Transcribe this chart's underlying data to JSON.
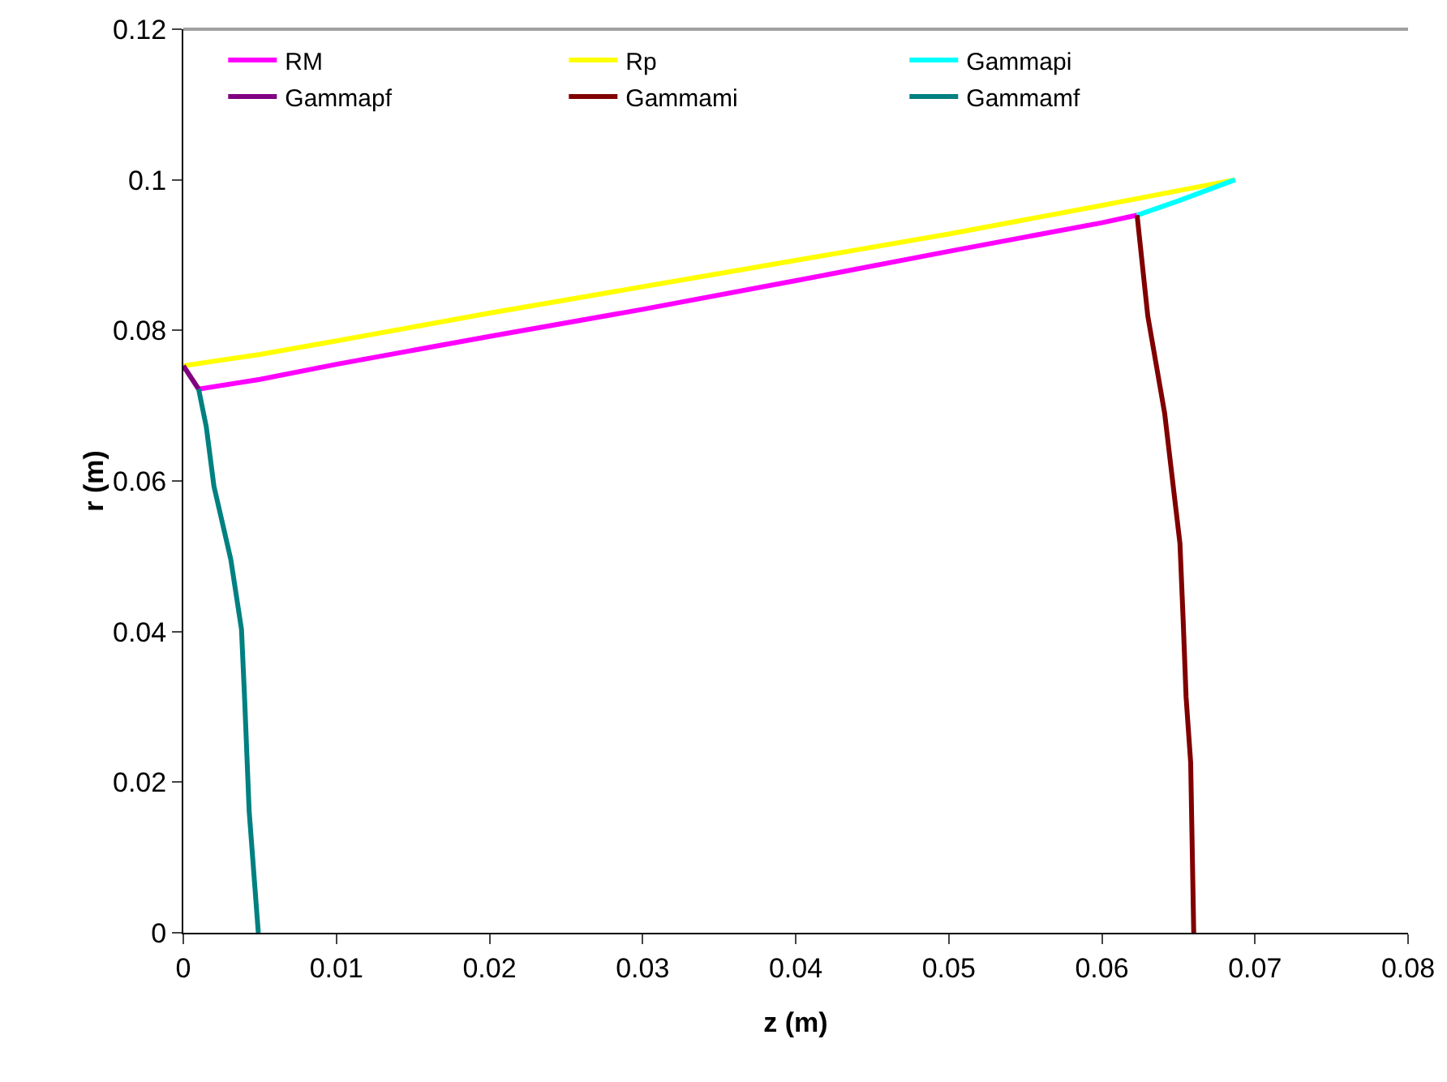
{
  "chart_data": {
    "type": "line",
    "xlabel": "z (m)",
    "ylabel": "r (m)",
    "xlim": [
      0,
      0.08
    ],
    "ylim": [
      0,
      0.12
    ],
    "xticks": [
      0,
      0.01,
      0.02,
      0.03,
      0.04,
      0.05,
      0.06,
      0.07,
      0.08
    ],
    "yticks": [
      0,
      0.02,
      0.04,
      0.06,
      0.08,
      0.1,
      0.12
    ],
    "grid": false,
    "legend": "top left",
    "marker": "none",
    "line_style": "solid",
    "series": [
      {
        "name": "RM",
        "color": "#ff00ff",
        "x": [
          0.001,
          0.005,
          0.01,
          0.02,
          0.03,
          0.04,
          0.05,
          0.06,
          0.0623
        ],
        "values": [
          0.0722,
          0.0735,
          0.0755,
          0.0792,
          0.0828,
          0.0866,
          0.0905,
          0.0943,
          0.0953
        ]
      },
      {
        "name": "Rp",
        "color": "#ffff00",
        "x": [
          0,
          0.005,
          0.01,
          0.02,
          0.03,
          0.04,
          0.05,
          0.06,
          0.0687
        ],
        "values": [
          0.0753,
          0.0768,
          0.0786,
          0.0823,
          0.0858,
          0.0893,
          0.0928,
          0.0966,
          0.1
        ]
      },
      {
        "name": "Gammapi",
        "color": "#00ffff",
        "x": [
          0.0623,
          0.065,
          0.0687
        ],
        "values": [
          0.0953,
          0.0972,
          0.1
        ]
      },
      {
        "name": "Gammapf",
        "color": "#800080",
        "x": [
          0,
          0.001
        ],
        "values": [
          0.0753,
          0.0722
        ]
      },
      {
        "name": "Gammami",
        "color": "#800000",
        "x": [
          0.0623,
          0.063,
          0.0641,
          0.0651,
          0.0653,
          0.0655,
          0.0658,
          0.066
        ],
        "values": [
          0.0953,
          0.0819,
          0.069,
          0.0517,
          0.042,
          0.0313,
          0.0226,
          0
        ]
      },
      {
        "name": "Gammamf",
        "color": "#008080",
        "x": [
          0.001,
          0.0015,
          0.002,
          0.0031,
          0.0038,
          0.004,
          0.0043,
          0.0049
        ],
        "values": [
          0.0722,
          0.0672,
          0.0593,
          0.0496,
          0.0403,
          0.0313,
          0.0162,
          0
        ]
      }
    ]
  }
}
